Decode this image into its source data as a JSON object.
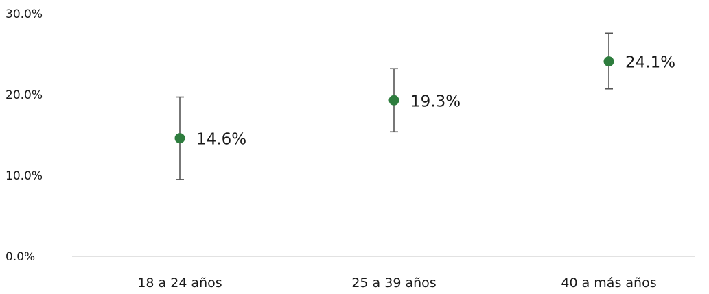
{
  "chart_data": {
    "type": "scatter",
    "title": "",
    "xlabel": "",
    "ylabel": "",
    "categories": [
      "18 a 24 años",
      "25 a 39 años",
      "40 a más años"
    ],
    "values": [
      14.6,
      19.3,
      24.1
    ],
    "error_low": [
      9.5,
      15.4,
      20.7
    ],
    "error_high": [
      19.7,
      23.2,
      27.6
    ],
    "data_labels": [
      "14.6%",
      "19.3%",
      "24.1%"
    ],
    "yticks": [
      "0.0%",
      "10.0%",
      "20.0%",
      "30.0%"
    ],
    "ylim": [
      0,
      30
    ],
    "grid": false,
    "legend": "none",
    "point_color": "#2e7d3e",
    "error_bar_color": "#555555",
    "axis_color": "#d9d9d9"
  }
}
